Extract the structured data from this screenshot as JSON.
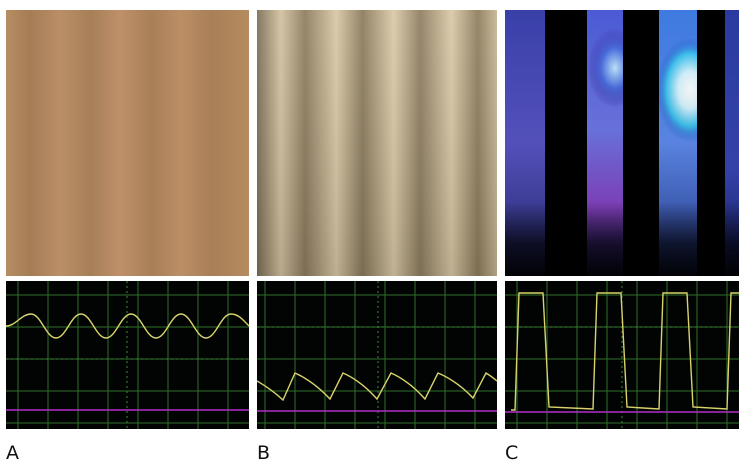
{
  "panels": [
    {
      "label": "A"
    },
    {
      "label": "B"
    },
    {
      "label": "C"
    }
  ],
  "colors": {
    "grid": "#2f6f2a",
    "trace": "#d9d36b",
    "baseline": "#b02fc8",
    "scope_background": "#020403"
  }
}
